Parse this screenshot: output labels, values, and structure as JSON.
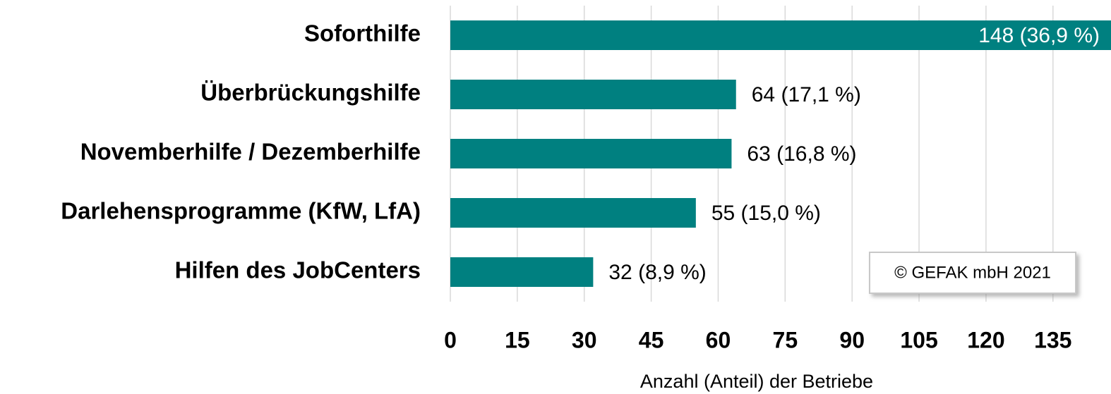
{
  "chart_data": {
    "type": "bar",
    "orientation": "horizontal",
    "categories": [
      "Soforthilfe",
      "Überbrückungshilfe",
      "Novemberhilfe / Dezemberhilfe",
      "Darlehensprogramme (KfW, LfA)",
      "Hilfen des JobCenters"
    ],
    "values": [
      148,
      64,
      63,
      55,
      32
    ],
    "value_labels": [
      "148 (36,9 %)",
      "64 (17,1 %)",
      "63 (16,8 %)",
      "55 (15,0 %)",
      "32 (8,9 %)"
    ],
    "color": "#008080",
    "xlim": [
      0,
      148
    ],
    "xticks": [
      0,
      15,
      30,
      45,
      60,
      75,
      90,
      105,
      120,
      135
    ],
    "grid": true,
    "xlabel": "Anzahl (Anteil) der Betriebe",
    "annotation": "© GEFAK mbH 2021"
  }
}
